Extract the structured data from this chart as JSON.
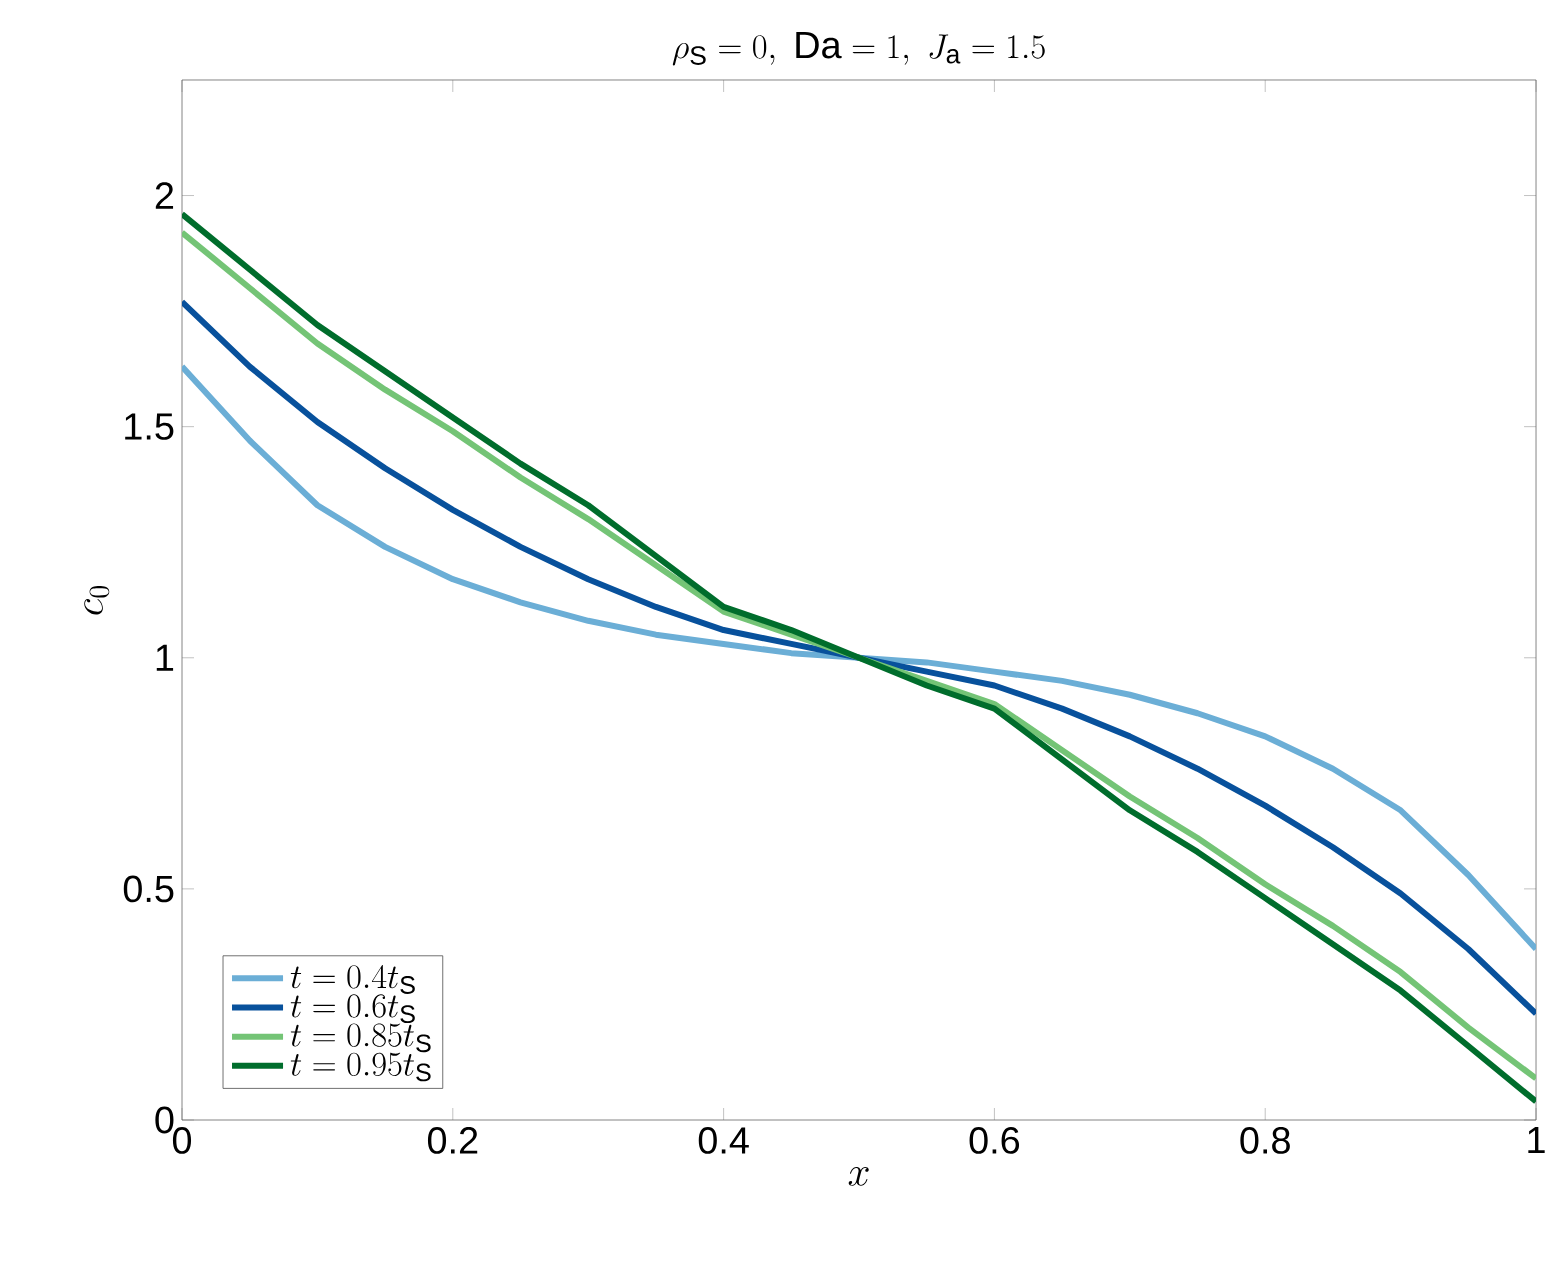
{
  "chart_data": {
    "type": "line",
    "title": "\\rho_\\mathrm{S} = 0,\\ \\mathrm{Da} = 1,\\ J_\\mathrm{a} = 1.5",
    "xlabel": "x",
    "ylabel": "c_0",
    "x": [
      0,
      0.05,
      0.1,
      0.15,
      0.2,
      0.25,
      0.3,
      0.35,
      0.4,
      0.45,
      0.5,
      0.55,
      0.6,
      0.65,
      0.7,
      0.75,
      0.8,
      0.85,
      0.9,
      0.95,
      1
    ],
    "series": [
      {
        "name": "t = 0.4t_\\mathrm{S}",
        "color": "#6baed6",
        "values": [
          1.63,
          1.47,
          1.33,
          1.24,
          1.17,
          1.12,
          1.08,
          1.05,
          1.03,
          1.01,
          1,
          0.99,
          0.97,
          0.95,
          0.92,
          0.88,
          0.83,
          0.76,
          0.67,
          0.53,
          0.37
        ]
      },
      {
        "name": "t = 0.6t_\\mathrm{S}",
        "color": "#08519c",
        "values": [
          1.77,
          1.63,
          1.51,
          1.41,
          1.32,
          1.24,
          1.17,
          1.11,
          1.06,
          1.03,
          1,
          0.97,
          0.94,
          0.89,
          0.83,
          0.76,
          0.68,
          0.59,
          0.49,
          0.37,
          0.23
        ]
      },
      {
        "name": "t = 0.85t_\\mathrm{S}",
        "color": "#74c476",
        "values": [
          1.92,
          1.8,
          1.68,
          1.58,
          1.49,
          1.39,
          1.3,
          1.2,
          1.1,
          1.05,
          1,
          0.95,
          0.9,
          0.8,
          0.7,
          0.61,
          0.51,
          0.42,
          0.32,
          0.2,
          0.09
        ]
      },
      {
        "name": "t = 0.95t_\\mathrm{S}",
        "color": "#006d2c",
        "values": [
          1.96,
          1.84,
          1.72,
          1.62,
          1.52,
          1.42,
          1.33,
          1.22,
          1.11,
          1.06,
          1,
          0.94,
          0.89,
          0.78,
          0.67,
          0.58,
          0.48,
          0.38,
          0.28,
          0.16,
          0.04
        ]
      }
    ],
    "xlim": [
      0,
      1
    ],
    "ylim": [
      0,
      2.25
    ],
    "xticks": [
      0,
      0.2,
      0.4,
      0.6,
      0.8,
      1
    ],
    "yticks": [
      0,
      0.5,
      1,
      1.5,
      2
    ],
    "legend": "bottom left",
    "grid": false,
    "marker": "none",
    "line_style": "solid"
  }
}
